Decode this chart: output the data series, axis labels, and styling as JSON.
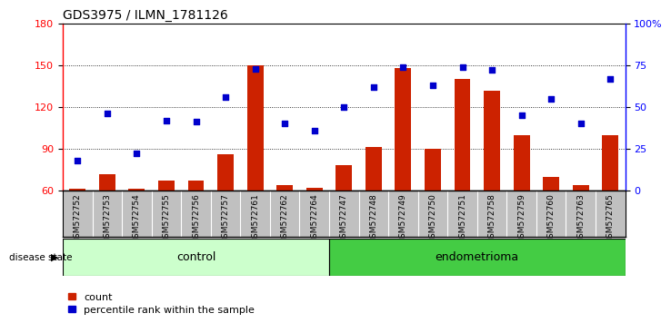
{
  "title": "GDS3975 / ILMN_1781126",
  "samples": [
    "GSM572752",
    "GSM572753",
    "GSM572754",
    "GSM572755",
    "GSM572756",
    "GSM572757",
    "GSM572761",
    "GSM572762",
    "GSM572764",
    "GSM572747",
    "GSM572748",
    "GSM572749",
    "GSM572750",
    "GSM572751",
    "GSM572758",
    "GSM572759",
    "GSM572760",
    "GSM572763",
    "GSM572765"
  ],
  "counts": [
    61,
    72,
    61,
    67,
    67,
    86,
    150,
    64,
    62,
    78,
    91,
    148,
    90,
    140,
    132,
    100,
    70,
    64,
    100
  ],
  "percentiles": [
    18,
    46,
    22,
    42,
    41,
    56,
    73,
    40,
    36,
    50,
    62,
    74,
    63,
    74,
    72,
    45,
    55,
    40,
    67
  ],
  "control_count": 9,
  "endometrioma_count": 10,
  "ylim_left": [
    60,
    180
  ],
  "ylim_right": [
    0,
    100
  ],
  "yticks_left": [
    60,
    90,
    120,
    150,
    180
  ],
  "yticks_right": [
    0,
    25,
    50,
    75,
    100
  ],
  "yticklabels_right": [
    "0",
    "25",
    "50",
    "75",
    "100%"
  ],
  "bar_color": "#cc2200",
  "dot_color": "#0000cc",
  "control_bg": "#ccffcc",
  "endo_bg": "#44cc44",
  "xlabel_area_bg": "#c0c0c0",
  "legend_bar_label": "count",
  "legend_dot_label": "percentile rank within the sample",
  "disease_state_label": "disease state",
  "control_label": "control",
  "endo_label": "endometrioma"
}
